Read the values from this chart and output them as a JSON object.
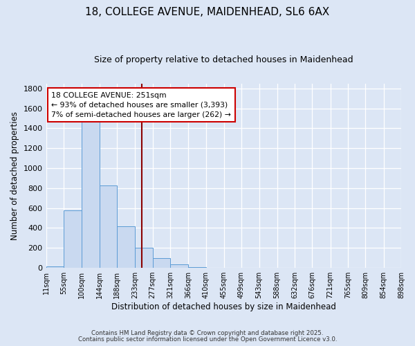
{
  "title_line1": "18, COLLEGE AVENUE, MAIDENHEAD, SL6 6AX",
  "title_line2": "Size of property relative to detached houses in Maidenhead",
  "xlabel": "Distribution of detached houses by size in Maidenhead",
  "ylabel": "Number of detached properties",
  "bin_edges": [
    11,
    55,
    100,
    144,
    188,
    233,
    277,
    321,
    366,
    410,
    455,
    499,
    543,
    588,
    632,
    676,
    721,
    765,
    809,
    854,
    898
  ],
  "bar_heights": [
    15,
    580,
    1470,
    830,
    420,
    205,
    100,
    35,
    5,
    2,
    0,
    0,
    0,
    0,
    0,
    0,
    0,
    0,
    0,
    0
  ],
  "bar_color": "#c9d9f0",
  "bar_edge_color": "#5b9bd5",
  "background_color": "#dce6f5",
  "grid_color": "#ffffff",
  "vline_x": 251,
  "vline_color": "#8b0000",
  "annotation_text": "18 COLLEGE AVENUE: 251sqm\n← 93% of detached houses are smaller (3,393)\n7% of semi-detached houses are larger (262) →",
  "annotation_box_color": "#ffffff",
  "annotation_box_edge_color": "#cc0000",
  "ylim": [
    0,
    1850
  ],
  "yticks": [
    0,
    200,
    400,
    600,
    800,
    1000,
    1200,
    1400,
    1600,
    1800
  ],
  "footer_line1": "Contains HM Land Registry data © Crown copyright and database right 2025.",
  "footer_line2": "Contains public sector information licensed under the Open Government Licence v3.0."
}
